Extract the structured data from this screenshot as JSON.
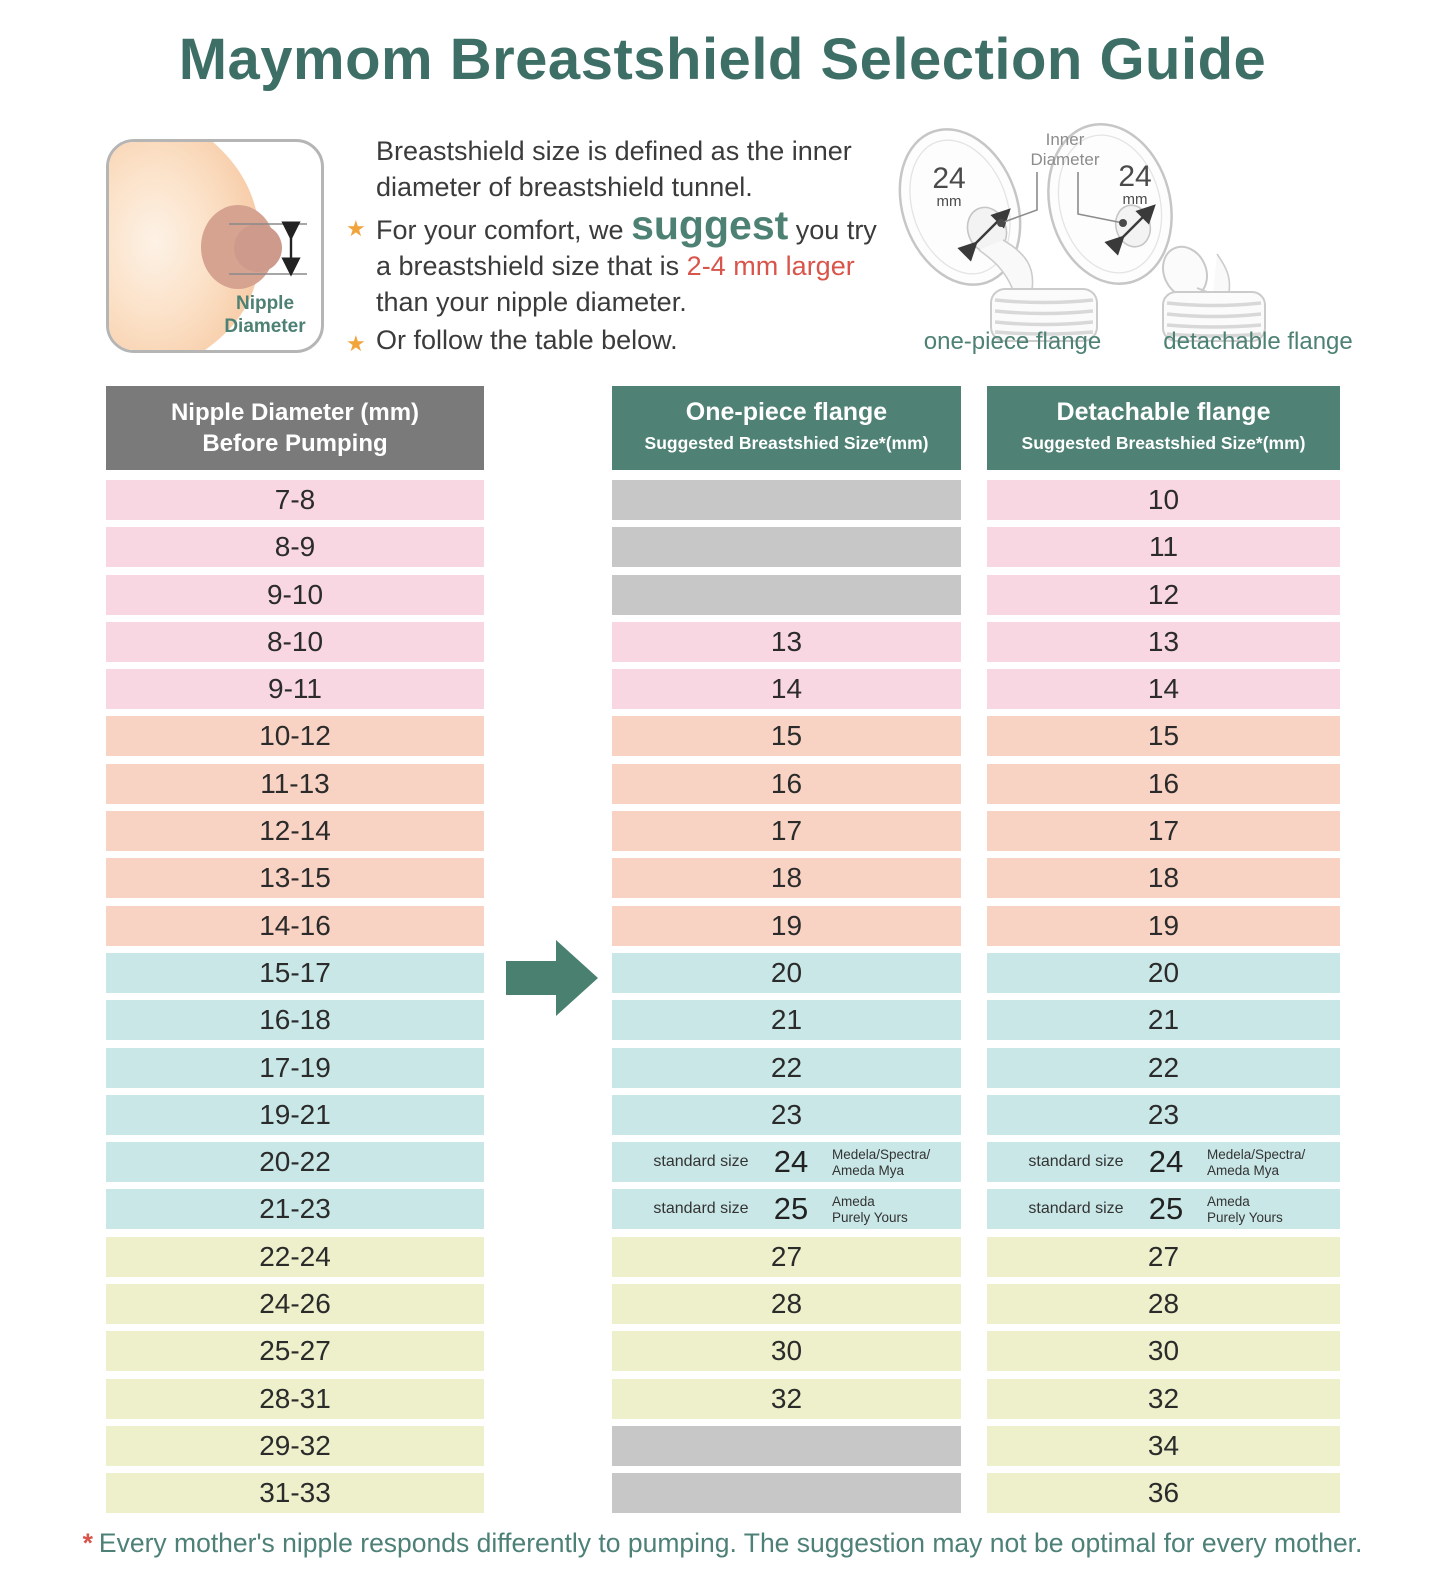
{
  "title": "Maymom Breastshield Selection Guide",
  "colors": {
    "accent_teal": "#4f8274",
    "title_teal": "#3e6f66",
    "red_highlight": "#d9544b",
    "star_orange": "#f1a33c",
    "row_pink": "#f8d7e3",
    "row_salmon": "#f8d2c3",
    "row_blue": "#c9e7e7",
    "row_yellow": "#edf0ca",
    "empty_gray": "#c7c7c7",
    "header_gray": "#7a7a7a"
  },
  "intro": {
    "sentence": "Breastshield size is defined as the inner diameter of breastshield tunnel.",
    "star": "★",
    "b1_pre": "For your comfort, we ",
    "b1_suggest": "suggest",
    "b1_mid": " you try a breastshield size that is ",
    "b1_red": "2-4 mm larger",
    "b1_post": " than your nipple diameter.",
    "b2": "Or follow the table below."
  },
  "diagram": {
    "nipple_diameter_label": "Nipple Diameter",
    "inner_diameter_label": "Inner Diameter",
    "size_value": "24",
    "size_unit": "mm",
    "one_piece_caption": "one-piece flange",
    "detachable_caption": "detachable flange"
  },
  "table": {
    "nipple_header_line1": "Nipple Diameter (mm)",
    "nipple_header_line2": "Before Pumping",
    "one_piece_header": "One-piece flange",
    "detachable_header": "Detachable flange",
    "subheader": "Suggested Breastshied Size*(mm)",
    "rows": [
      {
        "nipple": "7-8",
        "one": "",
        "det": "10",
        "color": "pink"
      },
      {
        "nipple": "8-9",
        "one": "",
        "det": "11",
        "color": "pink"
      },
      {
        "nipple": "9-10",
        "one": "",
        "det": "12",
        "color": "pink"
      },
      {
        "nipple": "8-10",
        "one": "13",
        "det": "13",
        "color": "pink"
      },
      {
        "nipple": "9-11",
        "one": "14",
        "det": "14",
        "color": "pink"
      },
      {
        "nipple": "10-12",
        "one": "15",
        "det": "15",
        "color": "salmon"
      },
      {
        "nipple": "11-13",
        "one": "16",
        "det": "16",
        "color": "salmon"
      },
      {
        "nipple": "12-14",
        "one": "17",
        "det": "17",
        "color": "salmon"
      },
      {
        "nipple": "13-15",
        "one": "18",
        "det": "18",
        "color": "salmon"
      },
      {
        "nipple": "14-16",
        "one": "19",
        "det": "19",
        "color": "salmon"
      },
      {
        "nipple": "15-17",
        "one": "20",
        "det": "20",
        "color": "blue"
      },
      {
        "nipple": "16-18",
        "one": "21",
        "det": "21",
        "color": "blue"
      },
      {
        "nipple": "17-19",
        "one": "22",
        "det": "22",
        "color": "blue"
      },
      {
        "nipple": "19-21",
        "one": "23",
        "det": "23",
        "color": "blue"
      },
      {
        "nipple": "20-22",
        "one": "24",
        "det": "24",
        "color": "blue",
        "standard": "standard size",
        "brand": [
          "Medela/Spectra/",
          "Ameda Mya"
        ]
      },
      {
        "nipple": "21-23",
        "one": "25",
        "det": "25",
        "color": "blue",
        "standard": "standard size",
        "brand": [
          "Ameda",
          "Purely Yours"
        ]
      },
      {
        "nipple": "22-24",
        "one": "27",
        "det": "27",
        "color": "yellow"
      },
      {
        "nipple": "24-26",
        "one": "28",
        "det": "28",
        "color": "yellow"
      },
      {
        "nipple": "25-27",
        "one": "30",
        "det": "30",
        "color": "yellow"
      },
      {
        "nipple": "28-31",
        "one": "32",
        "det": "32",
        "color": "yellow"
      },
      {
        "nipple": "29-32",
        "one": "",
        "det": "34",
        "color": "yellow"
      },
      {
        "nipple": "31-33",
        "one": "",
        "det": "36",
        "color": "yellow"
      }
    ]
  },
  "footnote": {
    "asterisk": "*",
    "text": "Every mother's nipple responds differently to pumping. The suggestion may not be optimal for every mother."
  }
}
